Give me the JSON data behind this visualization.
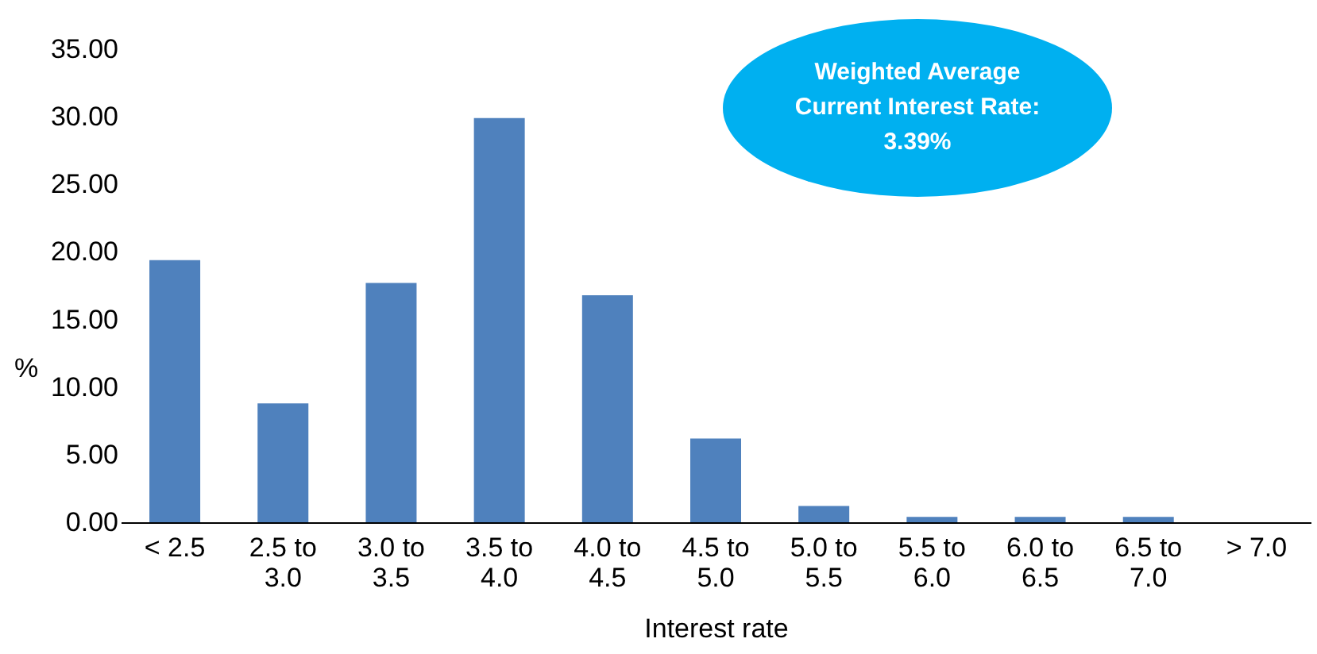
{
  "chart_data": {
    "type": "bar",
    "xlabel": "Interest rate",
    "ylabel": "%",
    "categories": [
      "< 2.5",
      "2.5 to 3.0",
      "3.0 to 3.5",
      "3.5 to 4.0",
      "4.0 to 4.5",
      "4.5 to 5.0",
      "5.0 to 5.5",
      "5.5 to 6.0",
      "6.0 to 6.5",
      "6.5 to 7.0",
      "> 7.0"
    ],
    "values": [
      19.4,
      8.8,
      17.7,
      29.9,
      16.8,
      6.2,
      1.2,
      0.4,
      0.4,
      0.4,
      0
    ],
    "color": "#4f81bd",
    "ylim": [
      0,
      35
    ],
    "yticks": [
      {
        "value": 0,
        "label": "0.00"
      },
      {
        "value": 5,
        "label": "5.00"
      },
      {
        "value": 10,
        "label": "10.00"
      },
      {
        "value": 15,
        "label": "15.00"
      },
      {
        "value": 20,
        "label": "20.00"
      },
      {
        "value": 25,
        "label": "25.00"
      },
      {
        "value": 30,
        "label": "30.00"
      },
      {
        "value": 35,
        "label": "35.00"
      }
    ],
    "grid": false,
    "annotations": [
      "Weighted Average Current Interest Rate: 3.39%"
    ]
  }
}
